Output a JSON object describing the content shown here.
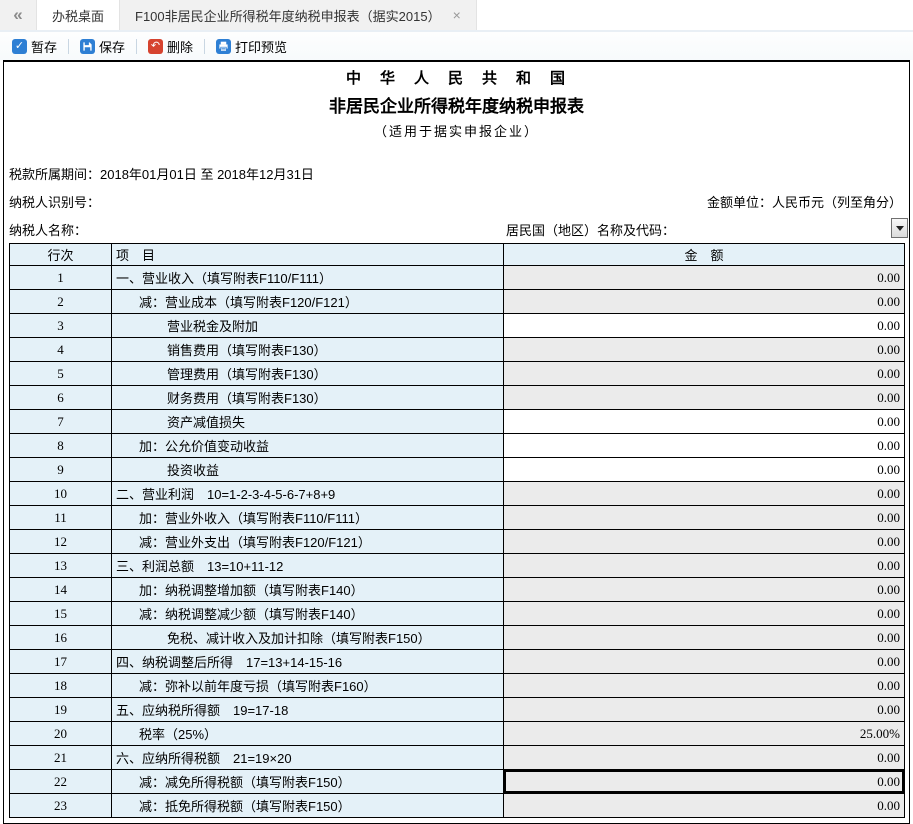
{
  "colors": {
    "accent_blue": "#2e7fd4",
    "delete_red": "#d6432f",
    "cell_blue": "#e4f1f8",
    "readonly_gray": "#ebebeb",
    "table_border": "#000000"
  },
  "tabbar": {
    "back_icon": "double-chevron-left",
    "back_glyph": "«",
    "tabs": [
      {
        "label": "办税桌面",
        "active": false
      },
      {
        "label": "F100非居民企业所得税年度纳税申报表（据实2015）",
        "active": true,
        "close_glyph": "×"
      }
    ]
  },
  "toolbar": {
    "buttons": [
      {
        "name": "temp-save",
        "label": "暂存",
        "icon": "check-icon"
      },
      {
        "name": "save",
        "label": "保存",
        "icon": "floppy-icon"
      },
      {
        "name": "delete",
        "label": "删除",
        "icon": "undo-arrow-icon"
      },
      {
        "name": "print-preview",
        "label": "打印预览",
        "icon": "printer-icon"
      }
    ]
  },
  "form": {
    "title_line1": "中　华　人　民　共　和　国",
    "title_line2": "非居民企业所得税年度纳税申报表",
    "title_line3": "（适用于据实申报企业）",
    "tax_period_label": "税款所属期间：",
    "tax_period_value": "2018年01月01日  至  2018年12月31日",
    "taxpayer_id_label": "纳税人识别号：",
    "amount_unit_label": "金额单位：人民币元（列至角分）",
    "taxpayer_name_label": "纳税人名称：",
    "resident_country_label": "居民国（地区）名称及代码：",
    "resident_country_value": ""
  },
  "table": {
    "headers": {
      "line_no": "行次",
      "item": "项　目",
      "amount": "金　额"
    },
    "rows": [
      {
        "no": "1",
        "item": "一、营业收入（填写附表F110/F111）",
        "indent": 0,
        "amount": "0.00",
        "editable": false
      },
      {
        "no": "2",
        "item": "减：营业成本（填写附表F120/F121）",
        "indent": 1,
        "amount": "0.00",
        "editable": false
      },
      {
        "no": "3",
        "item": "营业税金及附加",
        "indent": 2,
        "amount": "0.00",
        "editable": true
      },
      {
        "no": "4",
        "item": "销售费用（填写附表F130）",
        "indent": 2,
        "amount": "0.00",
        "editable": false
      },
      {
        "no": "5",
        "item": "管理费用（填写附表F130）",
        "indent": 2,
        "amount": "0.00",
        "editable": false
      },
      {
        "no": "6",
        "item": "财务费用（填写附表F130）",
        "indent": 2,
        "amount": "0.00",
        "editable": false
      },
      {
        "no": "7",
        "item": "资产减值损失",
        "indent": 2,
        "amount": "0.00",
        "editable": true
      },
      {
        "no": "8",
        "item": "加：公允价值变动收益",
        "indent": 1,
        "amount": "0.00",
        "editable": true
      },
      {
        "no": "9",
        "item": "投资收益",
        "indent": 2,
        "amount": "0.00",
        "editable": true
      },
      {
        "no": "10",
        "item": "二、营业利润　10=1-2-3-4-5-6-7+8+9",
        "indent": 0,
        "amount": "0.00",
        "editable": false
      },
      {
        "no": "11",
        "item": "加：营业外收入（填写附表F110/F111）",
        "indent": 1,
        "amount": "0.00",
        "editable": false
      },
      {
        "no": "12",
        "item": "减：营业外支出（填写附表F120/F121）",
        "indent": 1,
        "amount": "0.00",
        "editable": false
      },
      {
        "no": "13",
        "item": "三、利润总额　13=10+11-12",
        "indent": 0,
        "amount": "0.00",
        "editable": false
      },
      {
        "no": "14",
        "item": "加：纳税调整增加额（填写附表F140）",
        "indent": 1,
        "amount": "0.00",
        "editable": false
      },
      {
        "no": "15",
        "item": "减：纳税调整减少额（填写附表F140）",
        "indent": 1,
        "amount": "0.00",
        "editable": false
      },
      {
        "no": "16",
        "item": "免税、减计收入及加计扣除（填写附表F150）",
        "indent": 2,
        "amount": "0.00",
        "editable": false
      },
      {
        "no": "17",
        "item": "四、纳税调整后所得　17=13+14-15-16",
        "indent": 0,
        "amount": "0.00",
        "editable": false
      },
      {
        "no": "18",
        "item": "减：弥补以前年度亏损（填写附表F160）",
        "indent": 1,
        "amount": "0.00",
        "editable": false
      },
      {
        "no": "19",
        "item": "五、应纳税所得额　19=17-18",
        "indent": 0,
        "amount": "0.00",
        "editable": false
      },
      {
        "no": "20",
        "item": "税率（25%）",
        "indent": 1,
        "amount": "25.00%",
        "editable": false
      },
      {
        "no": "21",
        "item": "六、应纳所得税额　21=19×20",
        "indent": 0,
        "amount": "0.00",
        "editable": false
      },
      {
        "no": "22",
        "item": "减：减免所得税额（填写附表F150）",
        "indent": 1,
        "amount": "0.00",
        "editable": false,
        "focused": true
      },
      {
        "no": "23",
        "item": "减：抵免所得税额（填写附表F150）",
        "indent": 1,
        "amount": "0.00",
        "editable": false
      }
    ]
  }
}
